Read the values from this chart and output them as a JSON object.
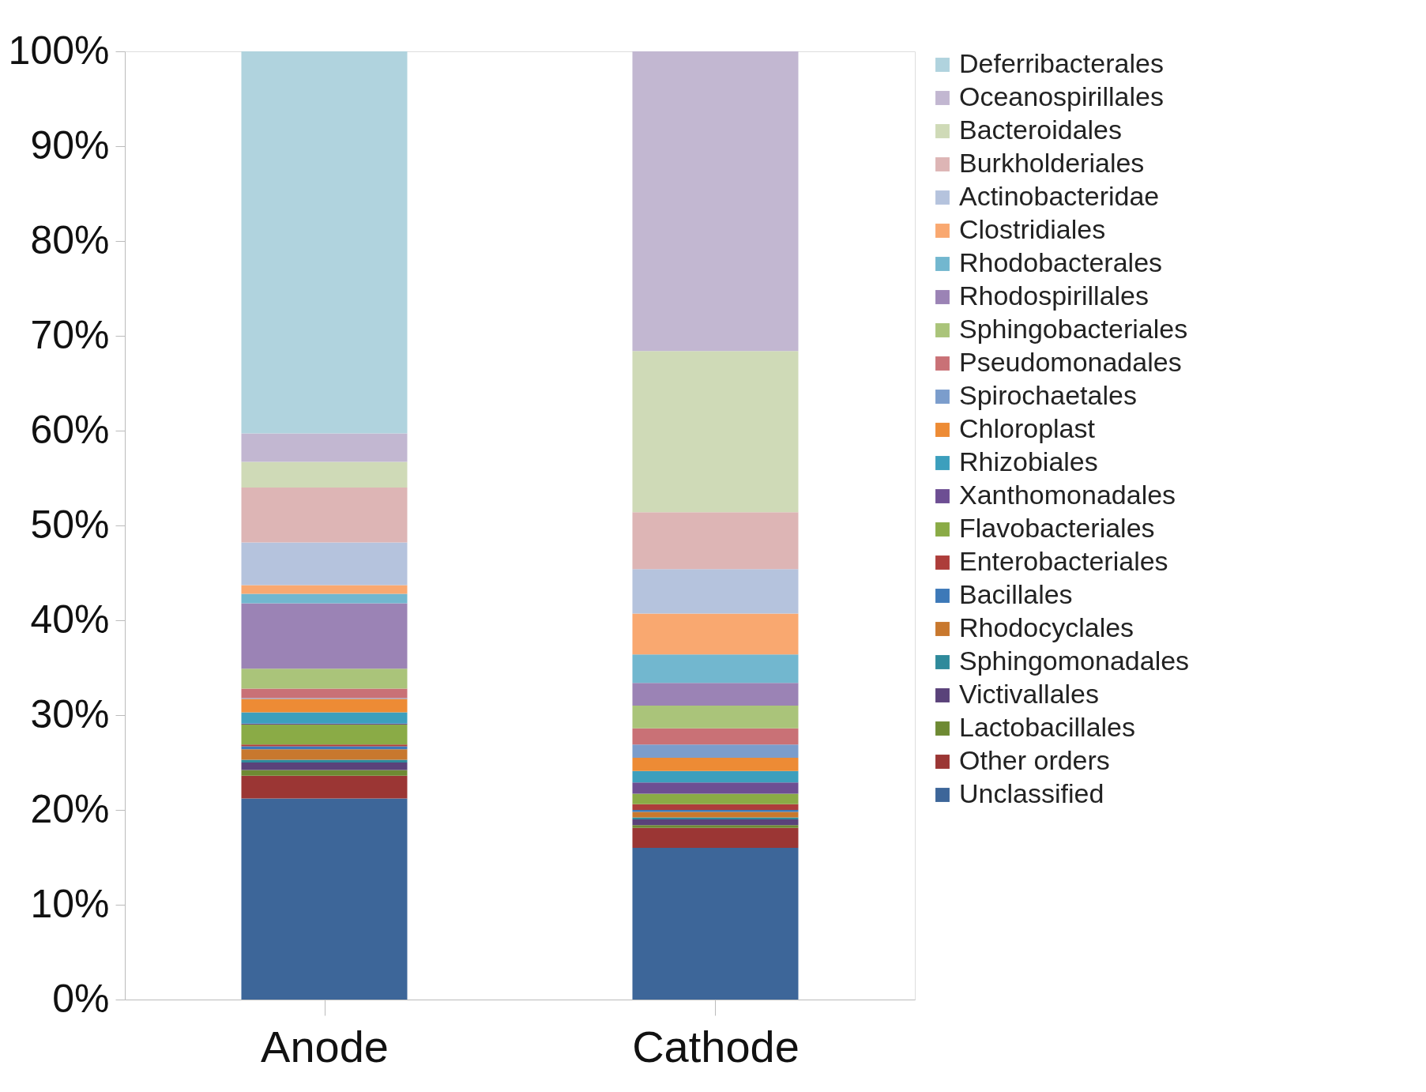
{
  "chart_data": {
    "type": "bar",
    "stacked": true,
    "categories": [
      "Anode",
      "Cathode"
    ],
    "ylim": [
      0,
      100
    ],
    "yticks": [
      {
        "value": 0,
        "label": "0%"
      },
      {
        "value": 10,
        "label": "10%"
      },
      {
        "value": 20,
        "label": "20%"
      },
      {
        "value": 30,
        "label": "30%"
      },
      {
        "value": 40,
        "label": "40%"
      },
      {
        "value": 50,
        "label": "50%"
      },
      {
        "value": 60,
        "label": "60%"
      },
      {
        "value": 70,
        "label": "70%"
      },
      {
        "value": 80,
        "label": "80%"
      },
      {
        "value": 90,
        "label": "90%"
      },
      {
        "value": 100,
        "label": "100%"
      }
    ],
    "grid": false,
    "legend": "right",
    "series": [
      {
        "name": "Unclassified",
        "color": "#3d6699",
        "values": [
          21.2,
          16.0
        ]
      },
      {
        "name": "Other orders",
        "color": "#9b3634",
        "values": [
          2.4,
          2.1
        ]
      },
      {
        "name": "Lactobacillales",
        "color": "#6e8a33",
        "values": [
          0.6,
          0.3
        ]
      },
      {
        "name": "Victivallales",
        "color": "#5a427a",
        "values": [
          0.8,
          0.6
        ]
      },
      {
        "name": "Sphingomonadales",
        "color": "#2f8a9b",
        "values": [
          0.3,
          0.2
        ]
      },
      {
        "name": "Rhodocyclales",
        "color": "#c8782e",
        "values": [
          1.1,
          0.6
        ]
      },
      {
        "name": "Bacillales",
        "color": "#3d79b8",
        "values": [
          0.3,
          0.2
        ]
      },
      {
        "name": "Enterobacteriales",
        "color": "#ad3d3a",
        "values": [
          0.2,
          0.6
        ]
      },
      {
        "name": "Flavobacteriales",
        "color": "#8aab46",
        "values": [
          2.1,
          1.1
        ]
      },
      {
        "name": "Xanthomonadales",
        "color": "#6d4e93",
        "values": [
          0.1,
          1.2
        ]
      },
      {
        "name": "Rhizobiales",
        "color": "#3c9fbd",
        "values": [
          1.2,
          1.2
        ]
      },
      {
        "name": "Chloroplast",
        "color": "#ed8b35",
        "values": [
          1.4,
          1.4
        ]
      },
      {
        "name": "Spirochaetales",
        "color": "#7b9dcc",
        "values": [
          0.1,
          1.4
        ]
      },
      {
        "name": "Pseudomonadales",
        "color": "#c97176",
        "values": [
          1.0,
          1.7
        ]
      },
      {
        "name": "Sphingobacteriales",
        "color": "#aac47a",
        "values": [
          2.1,
          2.4
        ]
      },
      {
        "name": "Rhodospirillales",
        "color": "#9b83b5",
        "values": [
          6.9,
          2.4
        ]
      },
      {
        "name": "Rhodobacterales",
        "color": "#72b7cf",
        "values": [
          1.0,
          3.0
        ]
      },
      {
        "name": "Clostridiales",
        "color": "#f9a870",
        "values": [
          0.9,
          4.3
        ]
      },
      {
        "name": "Actinobacteridae",
        "color": "#b5c3dd",
        "values": [
          4.5,
          4.7
        ]
      },
      {
        "name": "Burkholderiales",
        "color": "#ddb5b5",
        "values": [
          5.8,
          6.0
        ]
      },
      {
        "name": "Bacteroidales",
        "color": "#cfdab7",
        "values": [
          2.7,
          17.0
        ]
      },
      {
        "name": "Oceanospirillales",
        "color": "#c2b7d1",
        "values": [
          3.0,
          31.6
        ]
      },
      {
        "name": "Deferribacterales",
        "color": "#b0d3de",
        "values": [
          40.3,
          0.0
        ]
      }
    ]
  }
}
